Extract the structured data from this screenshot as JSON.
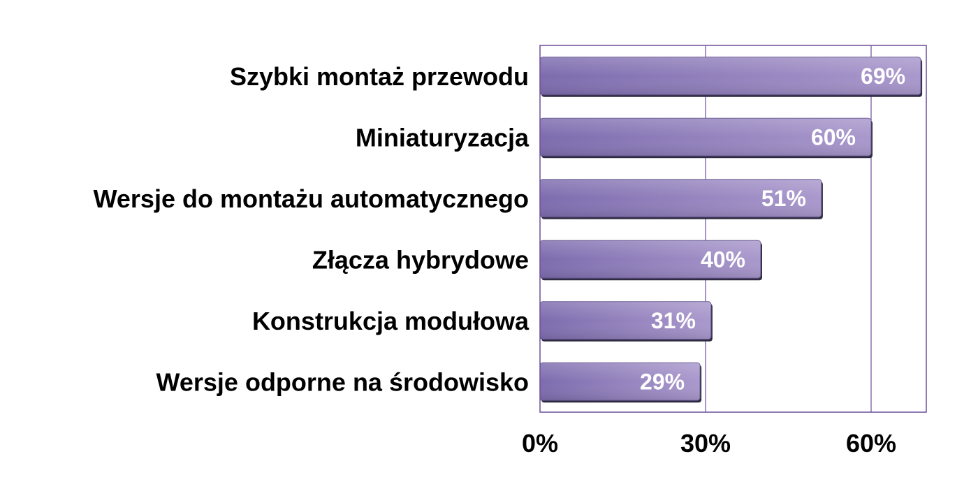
{
  "chart_data": {
    "type": "bar",
    "orientation": "horizontal",
    "categories": [
      "Szybki montaż przewodu",
      "Miniaturyzacja",
      "Wersje do montażu automatycznego",
      "Złącza hybrydowe",
      "Konstrukcja modułowa",
      "Wersje odporne na środowisko"
    ],
    "values": [
      69,
      60,
      51,
      40,
      31,
      29
    ],
    "data_labels": [
      "69%",
      "60%",
      "51%",
      "40%",
      "31%",
      "29%"
    ],
    "title": "",
    "xlabel": "",
    "ylabel": "",
    "xlim": [
      0,
      70
    ],
    "ticks": [
      0,
      30,
      60
    ],
    "tick_labels": [
      "0%",
      "30%",
      "60%"
    ],
    "grid": true,
    "legend": "none",
    "bar_color": "#9a88c4",
    "bar_edge_color": "#2e2a40",
    "frame_color": "#6b4f9a"
  }
}
